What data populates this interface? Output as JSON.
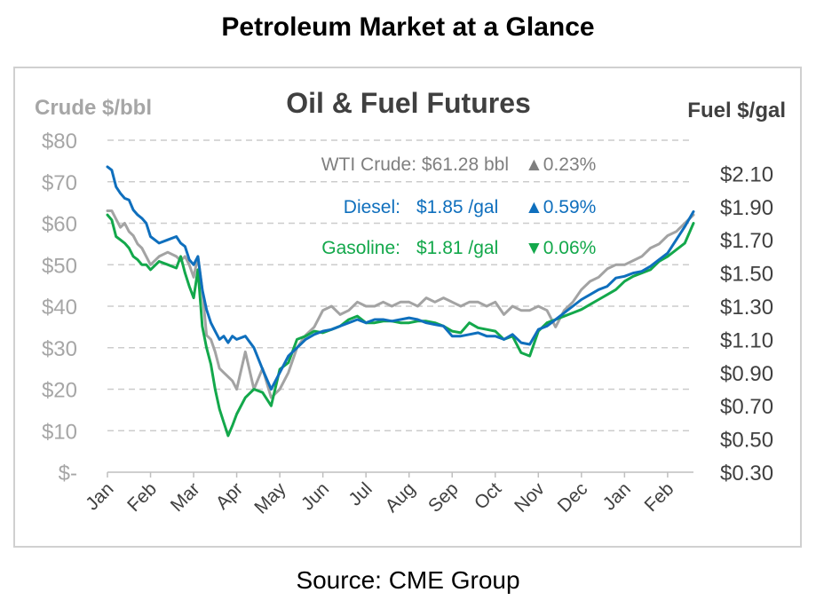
{
  "page": {
    "title": "Petroleum Market at a Glance",
    "source": "Source: CME Group"
  },
  "colors": {
    "wti": "#a3a3a3",
    "diesel": "#0f6fbd",
    "gasoline": "#13a84b",
    "grid": "#cccccc",
    "axis_text": "#a6a6a6"
  },
  "chart_data": {
    "type": "line",
    "title": "Oil & Fuel Futures",
    "ylabel_left": "Crude $/bbl",
    "ylabel_right": "Fuel $/gal",
    "ylim_left": [
      0,
      80
    ],
    "ylim_right": [
      0.3,
      2.3
    ],
    "yticks_left": [
      "$-",
      "$10",
      "$20",
      "$30",
      "$40",
      "$50",
      "$60",
      "$70",
      "$80"
    ],
    "yticks_right": [
      "$0.30",
      "$0.50",
      "$0.70",
      "$0.90",
      "$1.10",
      "$1.30",
      "$1.50",
      "$1.70",
      "$1.90",
      "$2.10"
    ],
    "categories": [
      "Jan",
      "Feb",
      "Mar",
      "Apr",
      "May",
      "Jun",
      "Jul",
      "Aug",
      "Sep",
      "Oct",
      "Nov",
      "Dec",
      "Jan",
      "Feb"
    ],
    "grid": true,
    "annotations": [
      {
        "series": "wti",
        "label": "WTI Crude:",
        "price": "$61.28 bbl",
        "change": "▲0.23%"
      },
      {
        "series": "diesel",
        "label": "Diesel:",
        "price": "$1.85 /gal",
        "change": "▲0.59%"
      },
      {
        "series": "gasoline",
        "label": "Gasoline:",
        "price": "$1.81 /gal",
        "change": "▼0.06%"
      }
    ],
    "series": [
      {
        "key": "wti",
        "axis": "left",
        "x": [
          0,
          0.1,
          0.2,
          0.3,
          0.4,
          0.5,
          0.6,
          0.7,
          0.8,
          0.9,
          1.0,
          1.2,
          1.4,
          1.6,
          1.7,
          1.8,
          1.9,
          2.0,
          2.1,
          2.2,
          2.3,
          2.4,
          2.5,
          2.6,
          2.7,
          2.8,
          2.9,
          3.0,
          3.2,
          3.4,
          3.6,
          3.8,
          4.0,
          4.2,
          4.4,
          4.6,
          4.8,
          5.0,
          5.2,
          5.4,
          5.6,
          5.8,
          6.0,
          6.2,
          6.4,
          6.6,
          6.8,
          7.0,
          7.2,
          7.4,
          7.6,
          7.8,
          8.0,
          8.2,
          8.4,
          8.6,
          8.8,
          9.0,
          9.2,
          9.4,
          9.6,
          9.8,
          10.0,
          10.2,
          10.4,
          10.6,
          10.8,
          11.0,
          11.2,
          11.4,
          11.6,
          11.8,
          12.0,
          12.2,
          12.4,
          12.6,
          12.8,
          13.0,
          13.2,
          13.4,
          13.6
        ],
        "values": [
          63,
          63,
          61,
          59,
          60,
          58,
          57,
          55,
          54,
          52,
          50,
          52,
          53,
          52,
          51,
          52,
          50,
          47,
          52,
          44,
          33,
          32,
          29,
          25,
          24,
          23,
          22,
          20,
          29,
          20,
          25,
          18,
          20,
          24,
          30,
          33,
          35,
          39,
          40,
          38,
          39,
          41,
          40,
          40,
          41,
          40,
          41,
          41,
          40,
          42,
          41,
          42,
          41,
          40,
          41,
          41,
          40,
          41,
          38,
          40,
          39,
          39,
          40,
          39,
          35,
          39,
          41,
          44,
          46,
          47,
          49,
          50,
          50,
          51,
          52,
          54,
          55,
          57,
          58,
          60,
          62
        ]
      },
      {
        "key": "diesel",
        "axis": "right",
        "x": [
          0,
          0.1,
          0.2,
          0.3,
          0.4,
          0.5,
          0.6,
          0.7,
          0.8,
          0.9,
          1.0,
          1.2,
          1.4,
          1.6,
          1.7,
          1.8,
          1.9,
          2.0,
          2.1,
          2.2,
          2.3,
          2.4,
          2.5,
          2.6,
          2.7,
          2.8,
          2.9,
          3.0,
          3.2,
          3.4,
          3.6,
          3.8,
          4.0,
          4.2,
          4.4,
          4.6,
          4.8,
          5.0,
          5.2,
          5.4,
          5.6,
          5.8,
          6.0,
          6.2,
          6.4,
          6.6,
          6.8,
          7.0,
          7.2,
          7.4,
          7.6,
          7.8,
          8.0,
          8.2,
          8.4,
          8.6,
          8.8,
          9.0,
          9.2,
          9.4,
          9.6,
          9.8,
          10.0,
          10.2,
          10.4,
          10.6,
          10.8,
          11.0,
          11.2,
          11.4,
          11.6,
          11.8,
          12.0,
          12.2,
          12.4,
          12.6,
          12.8,
          13.0,
          13.2,
          13.4,
          13.6
        ],
        "values": [
          2.14,
          2.12,
          2.02,
          1.98,
          1.95,
          1.94,
          1.88,
          1.85,
          1.83,
          1.8,
          1.72,
          1.68,
          1.7,
          1.72,
          1.68,
          1.66,
          1.58,
          1.55,
          1.6,
          1.4,
          1.28,
          1.2,
          1.15,
          1.1,
          1.12,
          1.08,
          1.12,
          1.1,
          1.12,
          1.05,
          0.92,
          0.8,
          0.9,
          1.0,
          1.05,
          1.1,
          1.13,
          1.15,
          1.16,
          1.18,
          1.2,
          1.22,
          1.2,
          1.22,
          1.22,
          1.21,
          1.22,
          1.23,
          1.22,
          1.2,
          1.19,
          1.18,
          1.12,
          1.12,
          1.13,
          1.14,
          1.12,
          1.12,
          1.1,
          1.13,
          1.08,
          1.07,
          1.16,
          1.18,
          1.22,
          1.26,
          1.3,
          1.34,
          1.37,
          1.4,
          1.42,
          1.47,
          1.48,
          1.5,
          1.51,
          1.54,
          1.58,
          1.62,
          1.7,
          1.78,
          1.87
        ]
      },
      {
        "key": "gasoline",
        "axis": "right",
        "x": [
          0,
          0.1,
          0.2,
          0.3,
          0.4,
          0.5,
          0.6,
          0.7,
          0.8,
          0.9,
          1.0,
          1.2,
          1.4,
          1.6,
          1.7,
          1.8,
          1.9,
          2.0,
          2.1,
          2.2,
          2.3,
          2.4,
          2.5,
          2.6,
          2.7,
          2.8,
          2.9,
          3.0,
          3.2,
          3.4,
          3.6,
          3.8,
          4.0,
          4.2,
          4.4,
          4.6,
          4.8,
          5.0,
          5.2,
          5.4,
          5.6,
          5.8,
          6.0,
          6.2,
          6.4,
          6.6,
          6.8,
          7.0,
          7.2,
          7.4,
          7.6,
          7.8,
          8.0,
          8.2,
          8.4,
          8.6,
          8.8,
          9.0,
          9.2,
          9.4,
          9.6,
          9.8,
          10.0,
          10.2,
          10.4,
          10.6,
          10.8,
          11.0,
          11.2,
          11.4,
          11.6,
          11.8,
          12.0,
          12.2,
          12.4,
          12.6,
          12.8,
          13.0,
          13.2,
          13.4,
          13.6
        ],
        "values": [
          1.85,
          1.82,
          1.72,
          1.7,
          1.68,
          1.65,
          1.6,
          1.58,
          1.55,
          1.55,
          1.52,
          1.57,
          1.55,
          1.53,
          1.6,
          1.5,
          1.42,
          1.35,
          1.52,
          1.18,
          1.05,
          0.95,
          0.8,
          0.68,
          0.6,
          0.52,
          0.58,
          0.65,
          0.75,
          0.8,
          0.78,
          0.7,
          0.92,
          0.96,
          1.1,
          1.12,
          1.15,
          1.14,
          1.16,
          1.18,
          1.22,
          1.24,
          1.2,
          1.2,
          1.21,
          1.21,
          1.2,
          1.2,
          1.21,
          1.21,
          1.2,
          1.18,
          1.15,
          1.14,
          1.2,
          1.17,
          1.16,
          1.15,
          1.1,
          1.12,
          1.02,
          1.0,
          1.15,
          1.2,
          1.22,
          1.24,
          1.26,
          1.28,
          1.31,
          1.34,
          1.37,
          1.4,
          1.45,
          1.48,
          1.5,
          1.52,
          1.57,
          1.6,
          1.64,
          1.68,
          1.8
        ]
      }
    ]
  }
}
